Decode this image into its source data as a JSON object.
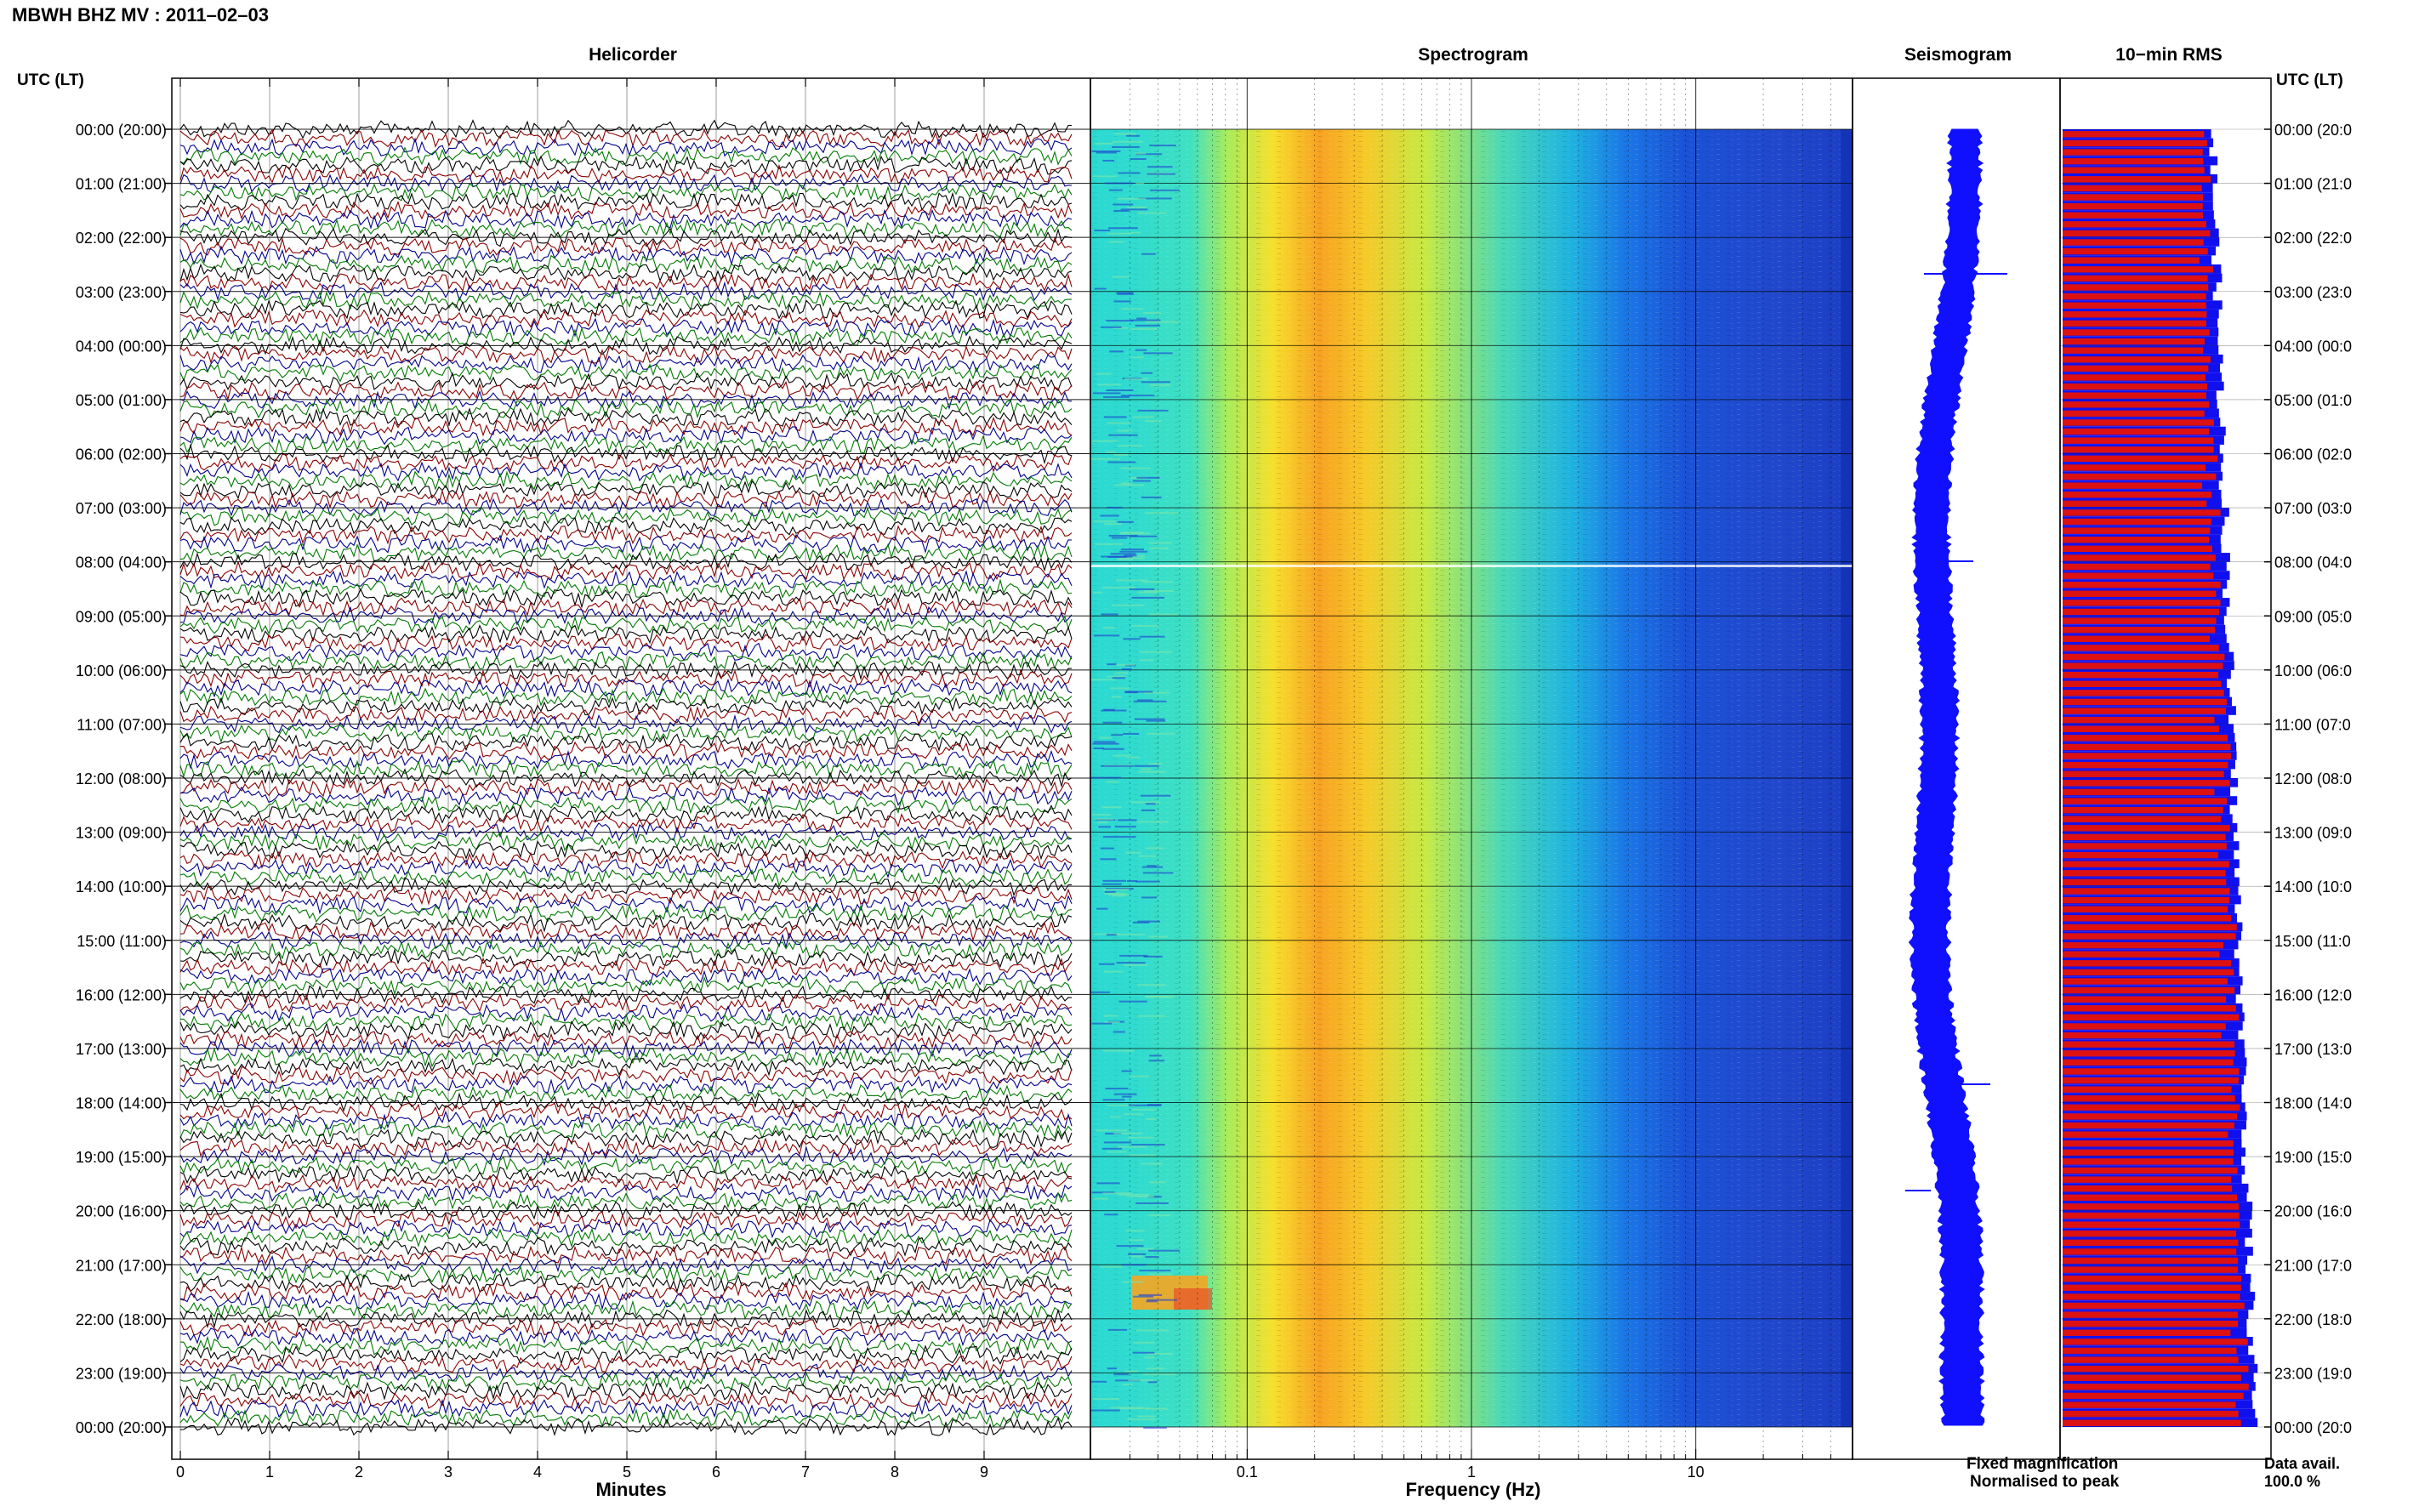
{
  "header": {
    "title": "MBWH BHZ MV : 2011–02–03",
    "time_axis_label": "UTC (LT)"
  },
  "panels": {
    "helicorder": "Helicorder",
    "spectrogram": "Spectrogram",
    "seismogram": "Seismogram",
    "rms": "10−min RMS"
  },
  "footer": {
    "legend_fixed": "Fixed magnification",
    "legend_normalised": "Normalised to peak",
    "data_avail_label": "Data avail.",
    "data_avail_value": "100.0 %"
  },
  "colors": {
    "trace_cycle": [
      "#000000",
      "#8b0000",
      "#00008b",
      "#007a00"
    ],
    "seismogram": "#1010ff",
    "rms_normalised": "#dd1111",
    "rms_fixed": "#1010ee",
    "legend_fixed": "#1010ee",
    "legend_normalised": "#dd1111"
  },
  "chart_data": [
    {
      "type": "line",
      "panel": "helicorder",
      "title": "Helicorder",
      "xlabel": "Minutes",
      "xlim": [
        0,
        10
      ],
      "xticks": [
        0,
        1,
        2,
        3,
        4,
        5,
        6,
        7,
        8,
        9
      ],
      "ylabels": [
        "00:00 (20:00)",
        "01:00 (21:00)",
        "02:00 (22:00)",
        "03:00 (23:00)",
        "04:00 (00:00)",
        "05:00 (01:00)",
        "06:00 (02:00)",
        "07:00 (03:00)",
        "08:00 (04:00)",
        "09:00 (05:00)",
        "10:00 (06:00)",
        "11:00 (07:00)",
        "12:00 (08:00)",
        "13:00 (09:00)",
        "14:00 (10:00)",
        "15:00 (11:00)",
        "16:00 (12:00)",
        "17:00 (13:00)",
        "18:00 (14:00)",
        "19:00 (15:00)",
        "20:00 (16:00)",
        "21:00 (17:00)",
        "22:00 (18:00)",
        "23:00 (19:00)",
        "00:00 (20:00)"
      ],
      "rows_per_hour": 6,
      "minutes_per_row": 10
    },
    {
      "type": "heatmap",
      "panel": "spectrogram",
      "title": "Spectrogram",
      "xlabel": "Frequency (Hz)",
      "xscale": "log",
      "xlim": [
        0.02,
        50
      ],
      "xticks": [
        0.1,
        1,
        10
      ],
      "xtick_labels": [
        "0.1",
        "1",
        "10"
      ]
    },
    {
      "type": "line",
      "panel": "seismogram",
      "title": "Seismogram"
    },
    {
      "type": "bar",
      "panel": "rms",
      "title": "10−min RMS",
      "orientation": "horizontal",
      "series": [
        {
          "name": "Fixed magnification"
        },
        {
          "name": "Normalised to peak"
        }
      ],
      "bins_per_day": 144,
      "right_ylabels": [
        "00:00 (20:0",
        "01:00 (21:0",
        "02:00 (22:0",
        "03:00 (23:0",
        "04:00 (00:0",
        "05:00 (01:0",
        "06:00 (02:0",
        "07:00 (03:0",
        "08:00 (04:0",
        "09:00 (05:0",
        "10:00 (06:0",
        "11:00 (07:0",
        "12:00 (08:0",
        "13:00 (09:0",
        "14:00 (10:0",
        "15:00 (11:0",
        "16:00 (12:0",
        "17:00 (13:0",
        "18:00 (14:0",
        "19:00 (15:0",
        "20:00 (16:0",
        "21:00 (17:0",
        "22:00 (18:0",
        "23:00 (19:0",
        "00:00 (20:0"
      ]
    }
  ]
}
